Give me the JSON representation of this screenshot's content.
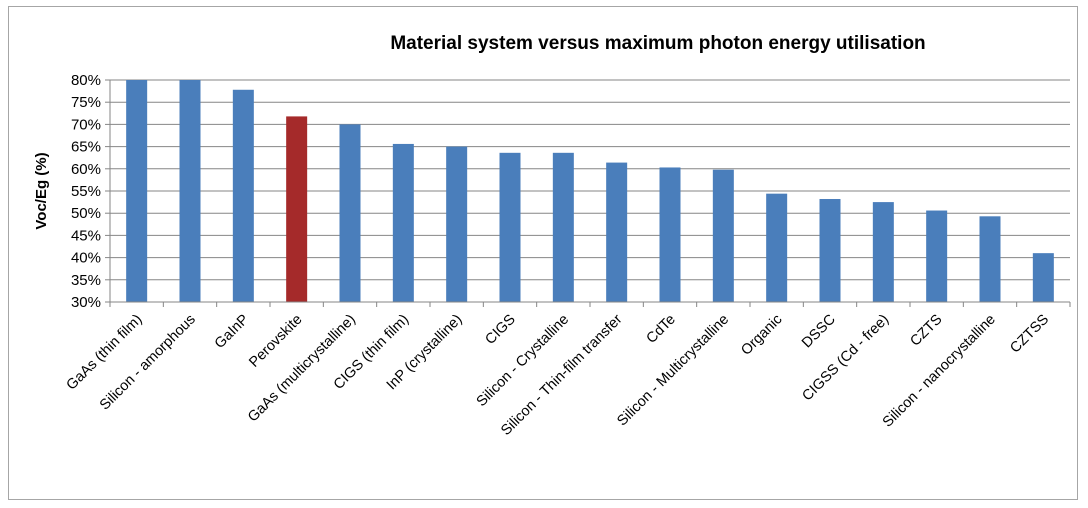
{
  "chart_data": {
    "type": "bar",
    "title": "Material system versus maximum photon energy utilisation",
    "xlabel": "",
    "ylabel": "Voc/Eg (%)",
    "ylim": [
      30,
      80
    ],
    "yticks": [
      "30%",
      "35%",
      "40%",
      "45%",
      "50%",
      "55%",
      "60%",
      "65%",
      "70%",
      "75%",
      "80%"
    ],
    "grid": true,
    "legend": "none",
    "categories": [
      "GaAs (thin film)",
      "Silicon - amorphous",
      "GaInP",
      "Perovskite",
      "GaAs (multicrystalline)",
      "CIGS (thin film)",
      "InP (crystalline)",
      "CIGS",
      "Silicon - Crystalline",
      "Silicon - Thin-film transfer",
      "CdTe",
      "Silicon - Multicrystalline",
      "Organic",
      "DSSC",
      "CIGSS (Cd - free)",
      "CZTS",
      "Silicon - nanocrystalline",
      "CZTSS"
    ],
    "values": [
      80,
      80,
      77.8,
      71.8,
      70,
      65.6,
      65,
      63.6,
      63.6,
      61.4,
      60.3,
      59.8,
      54.4,
      53.2,
      52.5,
      50.6,
      49.3,
      41
    ],
    "colors": {
      "default": "#4a7ebb",
      "highlight": "#a52a2a",
      "highlight_category": "Perovskite",
      "gridline": "#868686"
    }
  }
}
